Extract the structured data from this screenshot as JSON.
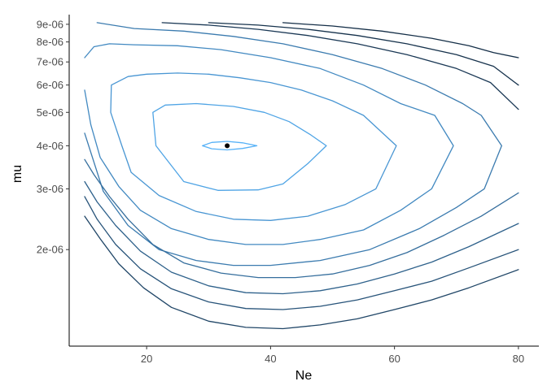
{
  "chart_data": {
    "type": "contour",
    "title": "",
    "xlabel": "Ne",
    "ylabel": "mu",
    "x_scale": "linear",
    "y_scale": "log",
    "xlim": [
      7.5,
      83.3
    ],
    "ylim": [
      1.05e-06,
      9.6e-06
    ],
    "x_ticks": [
      {
        "value": 20,
        "label": "20"
      },
      {
        "value": 40,
        "label": "40"
      },
      {
        "value": 60,
        "label": "60"
      },
      {
        "value": 80,
        "label": "80"
      }
    ],
    "y_ticks": [
      {
        "value": 2e-06,
        "label": "2e-06"
      },
      {
        "value": 3e-06,
        "label": "3e-06"
      },
      {
        "value": 4e-06,
        "label": "4e-06"
      },
      {
        "value": 5e-06,
        "label": "5e-06"
      },
      {
        "value": 6e-06,
        "label": "6e-06"
      },
      {
        "value": 7e-06,
        "label": "7e-06"
      },
      {
        "value": 8e-06,
        "label": "8e-06"
      },
      {
        "value": 9e-06,
        "label": "9e-06"
      }
    ],
    "grid": false,
    "colors": {
      "low_level": "#132B43",
      "high_level": "#56B1F7",
      "point": "#000000"
    },
    "point": {
      "x": 33,
      "y": 4e-06
    },
    "contours": [
      {
        "level": 1.0,
        "closed": true,
        "points": [
          [
            29.0,
            4e-06
          ],
          [
            30.5,
            4.09e-06
          ],
          [
            33.0,
            4.12e-06
          ],
          [
            35.5,
            4.08e-06
          ],
          [
            37.8,
            4e-06
          ],
          [
            35.5,
            3.93e-06
          ],
          [
            33.0,
            3.89e-06
          ],
          [
            30.5,
            3.92e-06
          ]
        ]
      },
      {
        "level": 0.9,
        "closed": true,
        "points": [
          [
            21.0,
            5e-06
          ],
          [
            23.0,
            5.25e-06
          ],
          [
            28.0,
            5.3e-06
          ],
          [
            34.0,
            5.2e-06
          ],
          [
            39.0,
            5e-06
          ],
          [
            43.0,
            4.7e-06
          ],
          [
            46.5,
            4.3e-06
          ],
          [
            49.0,
            4e-06
          ],
          [
            46.0,
            3.55e-06
          ],
          [
            42.0,
            3.1e-06
          ],
          [
            38.0,
            2.98e-06
          ],
          [
            31.5,
            2.97e-06
          ],
          [
            26.0,
            3.15e-06
          ],
          [
            21.5,
            4e-06
          ]
        ]
      },
      {
        "level": 0.8,
        "closed": true,
        "points": [
          [
            14.2,
            5e-06
          ],
          [
            14.3,
            6e-06
          ],
          [
            17.0,
            6.35e-06
          ],
          [
            20.0,
            6.45e-06
          ],
          [
            25.0,
            6.5e-06
          ],
          [
            30.0,
            6.45e-06
          ],
          [
            35.0,
            6.3e-06
          ],
          [
            40.0,
            6.1e-06
          ],
          [
            45.0,
            5.8e-06
          ],
          [
            50.0,
            5.4e-06
          ],
          [
            55.0,
            4.9e-06
          ],
          [
            60.3,
            4e-06
          ],
          [
            57.0,
            3e-06
          ],
          [
            52.0,
            2.7e-06
          ],
          [
            46.0,
            2.5e-06
          ],
          [
            40.0,
            2.43e-06
          ],
          [
            34.0,
            2.45e-06
          ],
          [
            28.0,
            2.58e-06
          ],
          [
            22.0,
            2.87e-06
          ],
          [
            17.5,
            3.35e-06
          ],
          [
            16.0,
            4e-06
          ]
        ]
      },
      {
        "level": 0.7,
        "open": true,
        "points": [
          [
            10.0,
            7.2e-06
          ],
          [
            11.5,
            7.75e-06
          ],
          [
            14.0,
            7.9e-06
          ],
          [
            18.0,
            7.85e-06
          ],
          [
            25.0,
            7.8e-06
          ],
          [
            32.0,
            7.6e-06
          ],
          [
            40.0,
            7.2e-06
          ],
          [
            48.0,
            6.7e-06
          ],
          [
            55.0,
            6e-06
          ],
          [
            61.0,
            5.3e-06
          ],
          [
            66.5,
            4.9e-06
          ],
          [
            69.5,
            4e-06
          ],
          [
            66.0,
            3e-06
          ],
          [
            61.0,
            2.6e-06
          ],
          [
            55.0,
            2.28e-06
          ],
          [
            48.0,
            2.14e-06
          ],
          [
            42.0,
            2.07e-06
          ],
          [
            36.0,
            2.07e-06
          ],
          [
            30.0,
            2.14e-06
          ],
          [
            24.0,
            2.3e-06
          ],
          [
            19.0,
            2.6e-06
          ],
          [
            15.5,
            3.05e-06
          ],
          [
            12.5,
            3.7e-06
          ],
          [
            11.0,
            4.6e-06
          ],
          [
            10.0,
            5.8e-06
          ]
        ]
      },
      {
        "level": 0.6,
        "open": true,
        "points": [
          [
            12.0,
            9.1e-06
          ],
          [
            18.0,
            8.75e-06
          ],
          [
            26.0,
            8.6e-06
          ],
          [
            34.0,
            8.3e-06
          ],
          [
            42.0,
            7.9e-06
          ],
          [
            50.0,
            7.35e-06
          ],
          [
            58.0,
            6.7e-06
          ],
          [
            65.0,
            6e-06
          ],
          [
            71.0,
            5.3e-06
          ],
          [
            74.0,
            4.9e-06
          ],
          [
            77.3,
            4e-06
          ],
          [
            74.5,
            3e-06
          ],
          [
            70.0,
            2.65e-06
          ],
          [
            64.0,
            2.3e-06
          ],
          [
            56.0,
            2e-06
          ],
          [
            48.0,
            1.86e-06
          ],
          [
            40.0,
            1.8e-06
          ],
          [
            34.0,
            1.8e-06
          ],
          [
            28.0,
            1.86e-06
          ],
          [
            22.0,
            2e-06
          ],
          [
            17.0,
            2.35e-06
          ],
          [
            13.0,
            2.95e-06
          ],
          [
            10.0,
            4.35e-06
          ]
        ]
      },
      {
        "level": 0.5,
        "open": true,
        "points": [
          [
            10.0,
            3.65e-06
          ],
          [
            11.5,
            3.3e-06
          ],
          [
            14.0,
            2.85e-06
          ],
          [
            17.0,
            2.45e-06
          ],
          [
            21.0,
            2.07e-06
          ],
          [
            26.0,
            1.83e-06
          ],
          [
            32.0,
            1.71e-06
          ],
          [
            38.0,
            1.66e-06
          ],
          [
            44.0,
            1.66e-06
          ],
          [
            50.0,
            1.7e-06
          ],
          [
            56.0,
            1.8e-06
          ],
          [
            62.0,
            1.96e-06
          ],
          [
            68.0,
            2.2e-06
          ],
          [
            74.0,
            2.5e-06
          ],
          [
            80.0,
            2.92e-06
          ]
        ]
      },
      {
        "level": 0.4,
        "open": true,
        "points": [
          [
            10.0,
            3.15e-06
          ],
          [
            12.0,
            2.75e-06
          ],
          [
            15.0,
            2.35e-06
          ],
          [
            19.0,
            1.98e-06
          ],
          [
            24.0,
            1.72e-06
          ],
          [
            30.0,
            1.57e-06
          ],
          [
            36.0,
            1.5e-06
          ],
          [
            42.0,
            1.49e-06
          ],
          [
            48.0,
            1.52e-06
          ],
          [
            54.0,
            1.59e-06
          ],
          [
            60.0,
            1.7e-06
          ],
          [
            66.0,
            1.84e-06
          ],
          [
            72.0,
            2.04e-06
          ],
          [
            80.0,
            2.38e-06
          ]
        ]
      },
      {
        "level": 0.3,
        "open": true,
        "points": [
          [
            10.0,
            2.85e-06
          ],
          [
            12.0,
            2.45e-06
          ],
          [
            15.0,
            2.07e-06
          ],
          [
            19.0,
            1.76e-06
          ],
          [
            24.0,
            1.54e-06
          ],
          [
            30.0,
            1.41e-06
          ],
          [
            36.0,
            1.35e-06
          ],
          [
            42.0,
            1.34e-06
          ],
          [
            48.0,
            1.37e-06
          ],
          [
            54.0,
            1.43e-06
          ],
          [
            60.0,
            1.52e-06
          ],
          [
            66.0,
            1.62e-06
          ],
          [
            72.0,
            1.77e-06
          ],
          [
            80.0,
            2e-06
          ]
        ]
      },
      {
        "level": 0.2,
        "open": true,
        "points": [
          [
            10.0,
            2.5e-06
          ],
          [
            12.5,
            2.15e-06
          ],
          [
            15.5,
            1.82e-06
          ],
          [
            19.5,
            1.55e-06
          ],
          [
            24.0,
            1.36e-06
          ],
          [
            30.0,
            1.24e-06
          ],
          [
            36.0,
            1.19e-06
          ],
          [
            42.0,
            1.18e-06
          ],
          [
            48.0,
            1.21e-06
          ],
          [
            54.0,
            1.26e-06
          ],
          [
            60.0,
            1.34e-06
          ],
          [
            66.0,
            1.43e-06
          ],
          [
            72.0,
            1.55e-06
          ],
          [
            80.0,
            1.75e-06
          ]
        ]
      },
      {
        "level": 0.1,
        "open": true,
        "points": [
          [
            22.5,
            9.1e-06
          ],
          [
            30.0,
            8.95e-06
          ],
          [
            38.0,
            8.7e-06
          ],
          [
            46.0,
            8.35e-06
          ],
          [
            54.0,
            7.9e-06
          ],
          [
            62.0,
            7.35e-06
          ],
          [
            70.0,
            6.7e-06
          ],
          [
            75.5,
            6.1e-06
          ],
          [
            80.0,
            5.1e-06
          ]
        ]
      },
      {
        "level": 0.05,
        "open": true,
        "points": [
          [
            30.0,
            9.1e-06
          ],
          [
            38.0,
            8.95e-06
          ],
          [
            46.0,
            8.7e-06
          ],
          [
            54.0,
            8.35e-06
          ],
          [
            62.0,
            7.9e-06
          ],
          [
            70.0,
            7.35e-06
          ],
          [
            76.0,
            6.8e-06
          ],
          [
            80.0,
            6e-06
          ]
        ]
      },
      {
        "level": 0.02,
        "open": true,
        "points": [
          [
            42.0,
            9.1e-06
          ],
          [
            50.0,
            8.9e-06
          ],
          [
            58.0,
            8.6e-06
          ],
          [
            66.0,
            8.2e-06
          ],
          [
            72.0,
            7.8e-06
          ],
          [
            76.0,
            7.45e-06
          ],
          [
            80.0,
            7.2e-06
          ]
        ]
      }
    ]
  }
}
